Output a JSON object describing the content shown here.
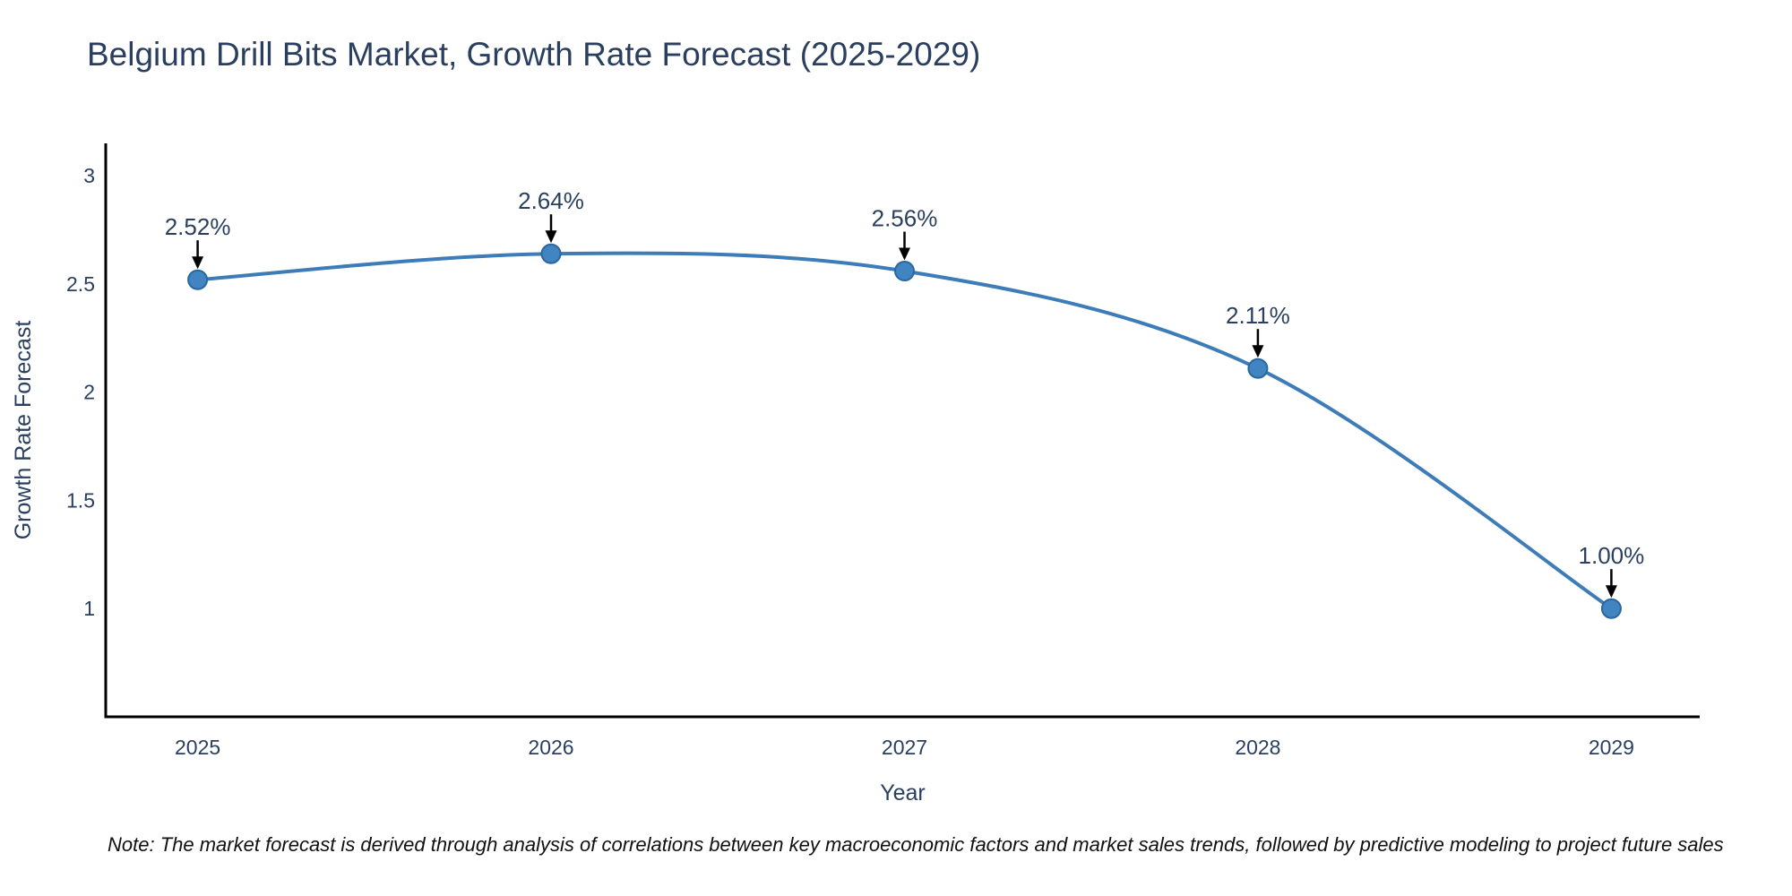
{
  "note": "Note: The market forecast is derived through analysis of correlations between key macroeconomic factors and market sales trends, followed by predictive modeling to project future sales",
  "colors": {
    "title_text": "#2a3f5f",
    "tick_text": "#2a3f5f",
    "annotation_text": "#2a3f5f",
    "note_text": "#111111",
    "axis_line": "#000000",
    "arrow": "#000000",
    "line": "#3d7cb8",
    "marker_fill": "#4084c2",
    "marker_stroke": "#2b669e",
    "background": "#ffffff"
  },
  "chart_data": {
    "type": "line",
    "title": "Belgium Drill Bits Market, Growth Rate Forecast (2025-2029)",
    "xlabel": "Year",
    "ylabel": "Growth Rate Forecast",
    "x": [
      2025,
      2026,
      2027,
      2028,
      2029
    ],
    "series": [
      {
        "name": "Growth Rate Forecast",
        "values": [
          2.52,
          2.64,
          2.56,
          2.11,
          1.0
        ]
      }
    ],
    "point_labels": [
      "2.52%",
      "2.64%",
      "2.56%",
      "2.11%",
      "1.00%"
    ],
    "x_tick_labels": [
      "2025",
      "2026",
      "2027",
      "2028",
      "2029"
    ],
    "y_ticks": [
      1,
      1.5,
      2,
      2.5,
      3
    ],
    "y_tick_labels": [
      "1",
      "1.5",
      "2",
      "2.5",
      "3"
    ],
    "xlim": [
      2024.74,
      2029.25
    ],
    "ylim": [
      0.5,
      3.15
    ],
    "line_shape": "spline",
    "grid": false,
    "legend": "none",
    "markers": true,
    "annotation_arrows": true
  }
}
